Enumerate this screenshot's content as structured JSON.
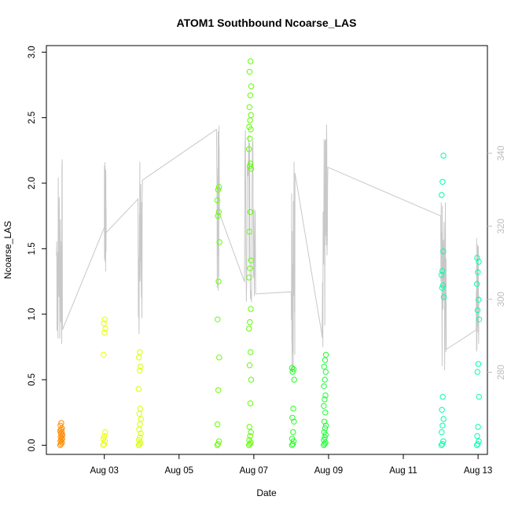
{
  "chart_data": {
    "type": "scatter",
    "title": "ATOM1 Southbound Ncoarse_LAS",
    "xlabel": "Date",
    "ylabel": "Ncoarse_LAS",
    "xlim_days": [
      1.45,
      13.25
    ],
    "ylim": [
      -0.07,
      3.05
    ],
    "y2lim": [
      257.5,
      369.5
    ],
    "x_ticks": [
      {
        "day": 3,
        "label": "Aug 03"
      },
      {
        "day": 5,
        "label": "Aug 05"
      },
      {
        "day": 7,
        "label": "Aug 07"
      },
      {
        "day": 9,
        "label": "Aug 09"
      },
      {
        "day": 11,
        "label": "Aug 11"
      },
      {
        "day": 13,
        "label": "Aug 13"
      }
    ],
    "y_ticks": [
      "0.0",
      "0.5",
      "1.0",
      "1.5",
      "2.0",
      "2.5",
      "3.0"
    ],
    "y2_ticks": [
      "280",
      "300",
      "320",
      "340"
    ],
    "y2_color": "#bdbdbd",
    "line_color": "#c8c8c8",
    "clusters": [
      {
        "day": 1.85,
        "color": "#ff8c00",
        "values": [
          0.0,
          0.01,
          0.02,
          0.03,
          0.04,
          0.05,
          0.06,
          0.07,
          0.08,
          0.09,
          0.1,
          0.11,
          0.12,
          0.13,
          0.15,
          0.17
        ]
      },
      {
        "day": 3.0,
        "color": "#e6ff00",
        "values": [
          0.0,
          0.01,
          0.03,
          0.05,
          0.07,
          0.1,
          0.69,
          0.86,
          0.89,
          0.93,
          0.96
        ]
      },
      {
        "day": 3.95,
        "color": "#d8ff00",
        "values": [
          0.0,
          0.01,
          0.02,
          0.04,
          0.06,
          0.09,
          0.12,
          0.16,
          0.2,
          0.24,
          0.28,
          0.43,
          0.57,
          0.6,
          0.67,
          0.71
        ]
      },
      {
        "day": 6.05,
        "color": "#66ff00",
        "values": [
          0.0,
          0.01,
          0.03,
          0.16,
          0.42,
          0.67,
          0.96,
          1.25,
          1.55,
          1.75,
          1.78,
          1.87,
          1.95,
          1.97
        ]
      },
      {
        "day": 6.9,
        "color": "#5eff00",
        "values": [
          0.0,
          0.01,
          0.02,
          0.04,
          0.07,
          0.1,
          0.14,
          0.32,
          0.5,
          0.61,
          0.71,
          0.89,
          0.94,
          1.04,
          1.28,
          1.35,
          1.41,
          1.63,
          1.78,
          2.11,
          2.13,
          2.15,
          2.26,
          2.34,
          2.41,
          2.43,
          2.48,
          2.52,
          2.58,
          2.67,
          2.74,
          2.85,
          2.93
        ]
      },
      {
        "day": 8.05,
        "color": "#22ff22",
        "values": [
          0.0,
          0.01,
          0.03,
          0.05,
          0.1,
          0.18,
          0.21,
          0.28,
          0.5,
          0.56,
          0.58,
          0.59
        ]
      },
      {
        "day": 8.9,
        "color": "#1aff33",
        "values": [
          0.0,
          0.01,
          0.02,
          0.04,
          0.06,
          0.08,
          0.1,
          0.13,
          0.15,
          0.18,
          0.25,
          0.3,
          0.35,
          0.38,
          0.45,
          0.5,
          0.56,
          0.6,
          0.65,
          0.69
        ]
      },
      {
        "day": 12.05,
        "color": "#00ffa6",
        "values": [
          0.0,
          0.01,
          0.03,
          0.1,
          0.15,
          0.2,
          0.27,
          0.37,
          1.13,
          1.2,
          1.22,
          1.3,
          1.33,
          1.48,
          1.91,
          2.01,
          2.21
        ]
      },
      {
        "day": 13.0,
        "color": "#00ffb0",
        "values": [
          0.0,
          0.01,
          0.03,
          0.07,
          0.14,
          0.37,
          0.56,
          0.62,
          0.96,
          1.03,
          1.11,
          1.23,
          1.32,
          1.4,
          1.43
        ]
      }
    ]
  }
}
